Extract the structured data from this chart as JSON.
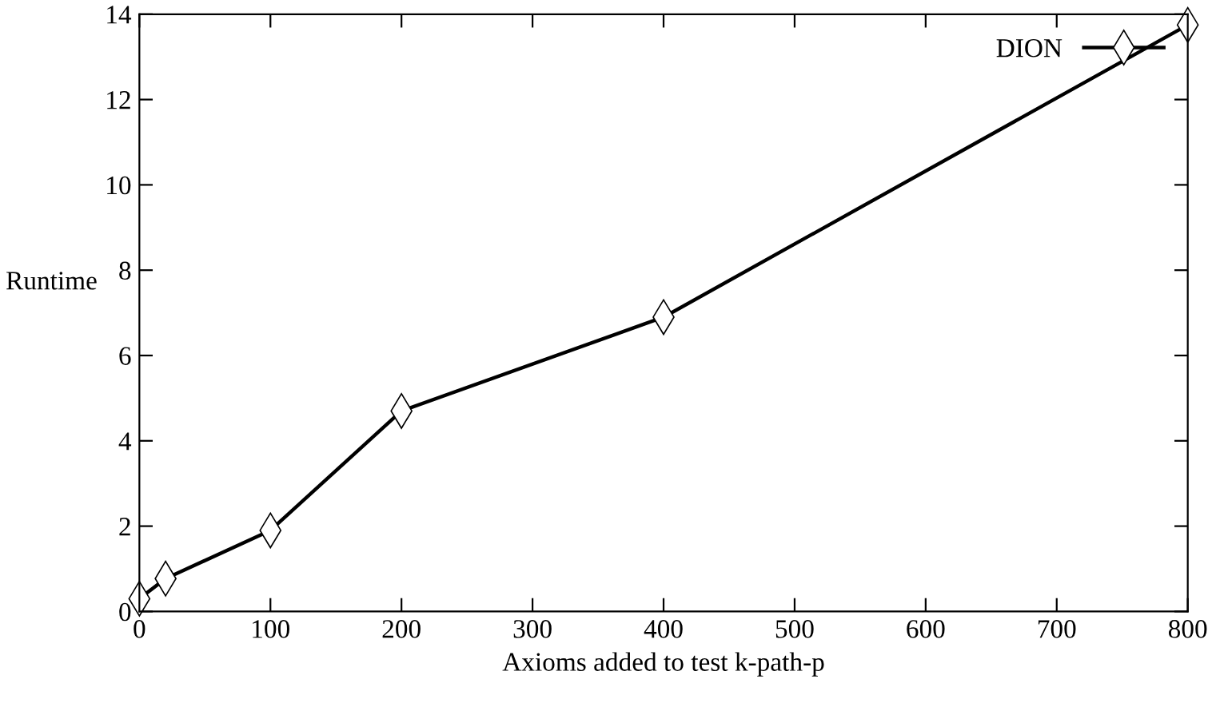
{
  "chart_data": {
    "type": "line",
    "xlabel": "Axioms added to test k-path-p",
    "ylabel": "Runtime",
    "x": [
      0,
      20,
      100,
      200,
      400,
      800
    ],
    "series": [
      {
        "name": "DION",
        "color": "#000000",
        "values": [
          0.3,
          0.77,
          1.9,
          4.7,
          6.9,
          13.75
        ]
      }
    ],
    "xlim": [
      0,
      800
    ],
    "xticks": [
      0,
      100,
      200,
      300,
      400,
      500,
      600,
      700,
      800
    ],
    "ylim": [
      0,
      14
    ],
    "yticks": [
      0,
      2,
      4,
      6,
      8,
      10,
      12,
      14
    ],
    "marker": "diamond",
    "line_style": "solid",
    "grid": false,
    "legend": "top right"
  }
}
